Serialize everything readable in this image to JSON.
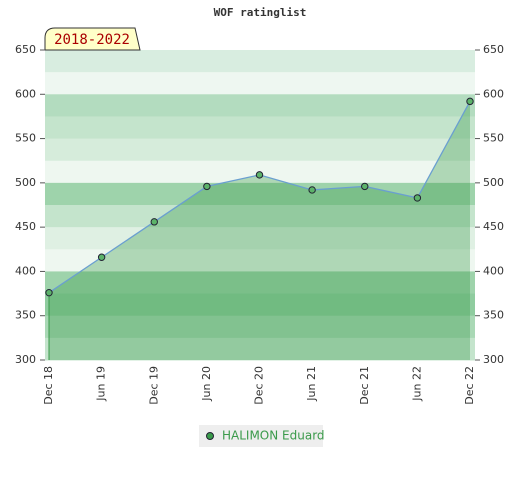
{
  "chart_data": {
    "type": "line",
    "title": "WOF ratinglist",
    "annotation": "2018-2022",
    "categories": [
      "Dec 18",
      "Jun 19",
      "Dec 19",
      "Jun 20",
      "Dec 20",
      "Jun 21",
      "Dec 21",
      "Jun 22",
      "Dec 22"
    ],
    "series": [
      {
        "name": "HALIMON Eduard",
        "color": "#3a9a4a",
        "values": [
          376,
          416,
          456,
          496,
          509,
          492,
          496,
          483,
          592
        ]
      }
    ],
    "ylim": [
      300,
      650
    ],
    "yticks": [
      300,
      350,
      400,
      450,
      500,
      550,
      600,
      650
    ],
    "y2lim": [
      300,
      650
    ],
    "y2ticks": [
      300,
      350,
      400,
      450,
      500,
      550,
      600,
      650
    ],
    "legend": "bottom"
  }
}
